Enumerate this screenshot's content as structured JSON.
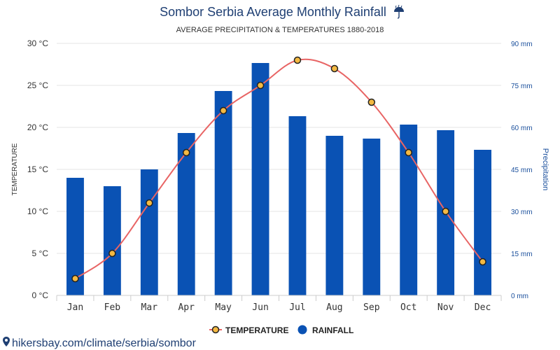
{
  "chart_data": {
    "type": "bar",
    "title": "Sombor Serbia Average Monthly Rainfall",
    "title_icon": "umbrella-rain-icon",
    "subtitle": "AVERAGE PRECIPITATION & TEMPERATURES 1880-2018",
    "categories": [
      "Jan",
      "Feb",
      "Mar",
      "Apr",
      "May",
      "Jun",
      "Jul",
      "Aug",
      "Sep",
      "Oct",
      "Nov",
      "Dec"
    ],
    "series": [
      {
        "name": "TEMPERATURE",
        "type": "line",
        "axis": "left",
        "color": "#e86464",
        "marker_fill": "#f4b942",
        "values": [
          2,
          5,
          11,
          17,
          22,
          25,
          28,
          27,
          23,
          17,
          10,
          4
        ]
      },
      {
        "name": "RAINFALL",
        "type": "bar",
        "axis": "right",
        "color": "#0a52b4",
        "values": [
          42,
          39,
          45,
          58,
          73,
          83,
          64,
          57,
          56,
          61,
          59,
          52
        ]
      }
    ],
    "y_left": {
      "label": "TEMPERATURE",
      "ylim": [
        0,
        30
      ],
      "ticks": [
        0,
        5,
        10,
        15,
        20,
        25,
        30
      ],
      "tick_labels": [
        "0 °C",
        "5 °C",
        "10 °C",
        "15 °C",
        "20 °C",
        "25 °C",
        "30 °C"
      ]
    },
    "y_right": {
      "label": "Precipitation",
      "ylim": [
        0,
        90
      ],
      "ticks": [
        0,
        15,
        30,
        45,
        60,
        75,
        90
      ],
      "tick_labels": [
        "0 mm",
        "15 mm",
        "30 mm",
        "45 mm",
        "60 mm",
        "75 mm",
        "90 mm"
      ]
    },
    "grid": true,
    "legend": {
      "position": "bottom-center",
      "entries": [
        "TEMPERATURE",
        "RAINFALL"
      ]
    },
    "source": "hikersbay.com/climate/serbia/sombor",
    "source_icon": "location-pin-icon"
  }
}
